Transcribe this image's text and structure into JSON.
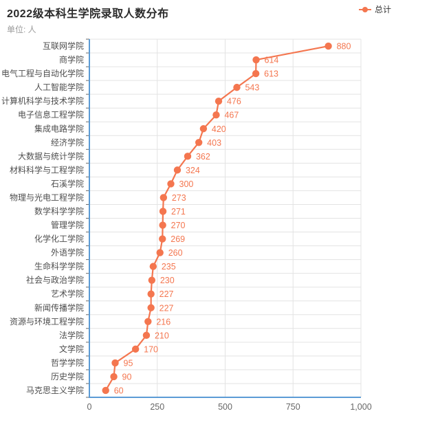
{
  "header": {
    "title": "2022级本科生学院录取人数分布",
    "subtitle": "单位: 人"
  },
  "legend": {
    "items": [
      {
        "label": "总计",
        "color": "#f4764f"
      }
    ]
  },
  "colors": {
    "series": "#f4764f",
    "axis_line": "#5b9bd5",
    "gridline": "#e3e3e3",
    "tick": "#666666",
    "category_label": "#4d4d4d",
    "value_tick_label": "#666666",
    "title": "#2b2b2b",
    "subtitle": "#9b9b9b"
  },
  "chart_data": {
    "type": "line",
    "orientation": "horizontal",
    "title": "2022级本科生学院录取人数分布",
    "subtitle": "单位: 人",
    "unit": "人",
    "legend": [
      "总计"
    ],
    "legend_position": "top-right",
    "series_name": "总计",
    "grid": true,
    "categories": [
      "互联网学院",
      "商学院",
      "电气工程与自动化学院",
      "人工智能学院",
      "计算机科学与技术学院",
      "电子信息工程学院",
      "集成电路学院",
      "经济学院",
      "大数据与统计学院",
      "材料科学与工程学院",
      "石溪学院",
      "物理与光电工程学院",
      "数学科学学院",
      "管理学院",
      "化学化工学院",
      "外语学院",
      "生命科学学院",
      "社会与政治学院",
      "艺术学院",
      "新闻传播学院",
      "资源与环境工程学院",
      "法学院",
      "文学院",
      "哲学学院",
      "历史学院",
      "马克思主义学院"
    ],
    "values": [
      880,
      614,
      613,
      543,
      476,
      467,
      420,
      403,
      362,
      324,
      300,
      273,
      271,
      270,
      269,
      260,
      235,
      230,
      227,
      227,
      216,
      210,
      170,
      95,
      90,
      60
    ],
    "xlim": [
      0,
      1000
    ],
    "xticks": [
      0,
      250,
      500,
      750,
      1000
    ],
    "xtick_labels": [
      "0",
      "250",
      "500",
      "750",
      "1,000"
    ]
  }
}
